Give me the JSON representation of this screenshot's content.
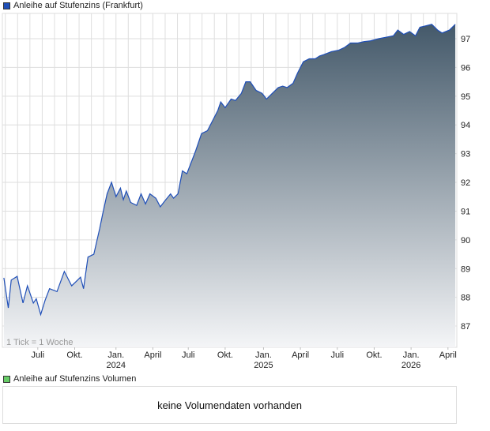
{
  "legend_price": {
    "label": "Anleihe auf Stufenzins (Frankfurt)",
    "color": "#1f4fb8"
  },
  "legend_volume": {
    "label": "Anleihe auf Stufenzins Volumen",
    "color": "#66cc66"
  },
  "volume_message": "keine Volumendaten vorhanden",
  "chart_data": {
    "type": "area",
    "title": "Anleihe auf Stufenzins (Frankfurt)",
    "note": "1 Tick = 1 Woche",
    "xlim": [
      2023.23,
      2026.31
    ],
    "ylim": [
      86.26,
      97.88
    ],
    "yticks": [
      87,
      88,
      89,
      90,
      91,
      92,
      93,
      94,
      95,
      96,
      97
    ],
    "xticks": [
      {
        "x": 2023.47,
        "label": "Juli",
        "year": ""
      },
      {
        "x": 2023.72,
        "label": "Okt.",
        "year": ""
      },
      {
        "x": 2024.0,
        "label": "Jan.",
        "year": "2024"
      },
      {
        "x": 2024.25,
        "label": "April",
        "year": ""
      },
      {
        "x": 2024.49,
        "label": "Juli",
        "year": ""
      },
      {
        "x": 2024.74,
        "label": "Okt.",
        "year": ""
      },
      {
        "x": 2025.0,
        "label": "Jan.",
        "year": "2025"
      },
      {
        "x": 2025.25,
        "label": "April",
        "year": ""
      },
      {
        "x": 2025.5,
        "label": "Juli",
        "year": ""
      },
      {
        "x": 2025.75,
        "label": "Okt.",
        "year": ""
      },
      {
        "x": 2026.0,
        "label": "Jan.",
        "year": "2026"
      },
      {
        "x": 2026.25,
        "label": "April",
        "year": ""
      }
    ],
    "grid": true,
    "series": [
      {
        "name": "Anleihe auf Stufenzins (Frankfurt)",
        "x": [
          2023.24,
          2023.27,
          2023.29,
          2023.33,
          2023.37,
          2023.4,
          2023.44,
          2023.46,
          2023.49,
          2023.52,
          2023.55,
          2023.6,
          2023.65,
          2023.7,
          2023.76,
          2023.78,
          2023.81,
          2023.85,
          2023.89,
          2023.91,
          2023.94,
          2023.97,
          2024.0,
          2024.03,
          2024.05,
          2024.07,
          2024.1,
          2024.14,
          2024.17,
          2024.2,
          2024.23,
          2024.27,
          2024.3,
          2024.33,
          2024.37,
          2024.39,
          2024.42,
          2024.45,
          2024.48,
          2024.51,
          2024.54,
          2024.58,
          2024.62,
          2024.65,
          2024.69,
          2024.71,
          2024.74,
          2024.78,
          2024.81,
          2024.85,
          2024.88,
          2024.91,
          2024.95,
          2024.99,
          2025.02,
          2025.06,
          2025.1,
          2025.13,
          2025.16,
          2025.2,
          2025.23,
          2025.27,
          2025.31,
          2025.35,
          2025.38,
          2025.41,
          2025.46,
          2025.51,
          2025.55,
          2025.59,
          2025.64,
          2025.68,
          2025.72,
          2025.78,
          2025.83,
          2025.88,
          2025.91,
          2025.95,
          2025.99,
          2026.03,
          2026.06,
          2026.1,
          2026.14,
          2026.18,
          2026.21,
          2026.26,
          2026.3
        ],
        "y": [
          88.68,
          87.63,
          88.6,
          88.73,
          87.8,
          88.4,
          87.8,
          87.95,
          87.4,
          87.9,
          88.3,
          88.2,
          88.9,
          88.4,
          88.7,
          88.3,
          89.4,
          89.5,
          90.4,
          90.9,
          91.6,
          92.0,
          91.5,
          91.8,
          91.4,
          91.7,
          91.3,
          91.2,
          91.6,
          91.25,
          91.6,
          91.45,
          91.15,
          91.35,
          91.6,
          91.45,
          91.6,
          92.4,
          92.3,
          92.7,
          93.1,
          93.7,
          93.8,
          94.1,
          94.5,
          94.8,
          94.6,
          94.9,
          94.85,
          95.1,
          95.5,
          95.5,
          95.2,
          95.1,
          94.9,
          95.1,
          95.3,
          95.35,
          95.3,
          95.45,
          95.8,
          96.2,
          96.3,
          96.3,
          96.4,
          96.45,
          96.55,
          96.6,
          96.7,
          96.85,
          96.85,
          96.9,
          96.92,
          97.0,
          97.05,
          97.1,
          97.3,
          97.15,
          97.25,
          97.1,
          97.4,
          97.45,
          97.5,
          97.3,
          97.2,
          97.3,
          97.5
        ]
      }
    ]
  }
}
